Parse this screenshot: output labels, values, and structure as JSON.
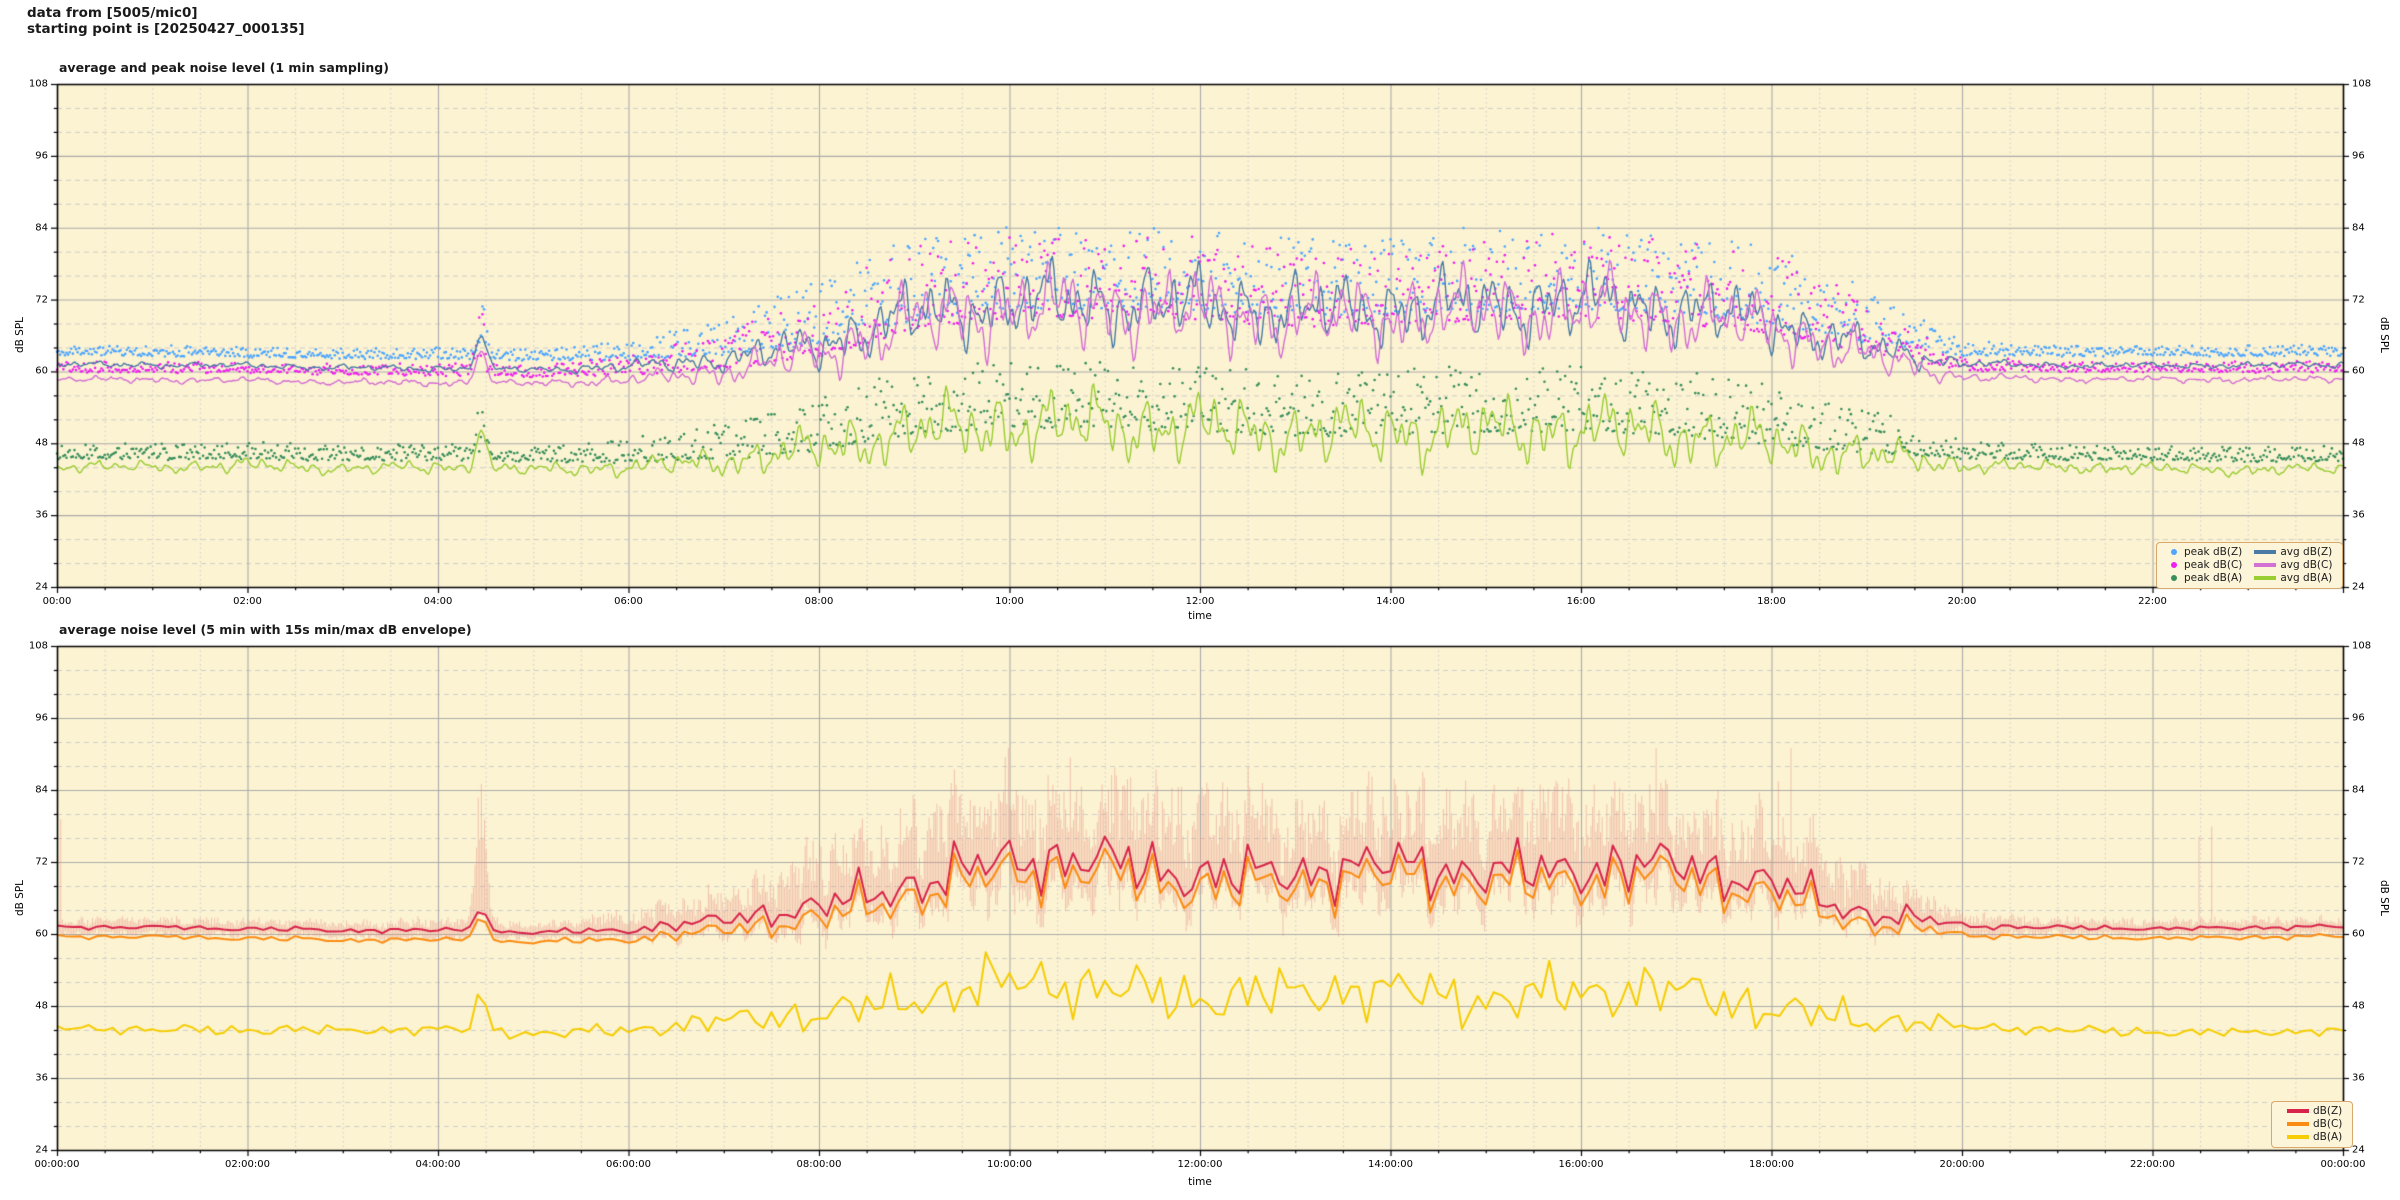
{
  "header": {
    "line1": "data from [5005/mic0]",
    "line2": "starting point is [20250427_000135]"
  },
  "colors": {
    "figure_bg": "#ffffff",
    "plot_bg": "#fcf3d2",
    "grid_major": "#ababab",
    "grid_minor": "#c9c9c9",
    "spine": "#000000",
    "peak_dbz": "#4da6ff",
    "peak_dbc": "#ee22ee",
    "peak_dba": "#378f5b",
    "avg_dbz": "#4a7ba6",
    "avg_dbc": "#d46fd4",
    "avg_dba": "#9acd32",
    "dbz2": "#d8244a",
    "dbc2": "#fb8c12",
    "dba2": "#f5cd02",
    "envelope": "rgba(232,148,138,0.5)",
    "legend_border": "#d9a86c",
    "legend_bg": "#fdf5d9"
  },
  "chart_data": [
    {
      "type": "line",
      "title": "average and peak noise level (1 min sampling)",
      "xlabel": "time",
      "ylabel_left": "dB SPL",
      "ylabel_right": "dB SPL",
      "ylim": [
        24,
        108
      ],
      "xlim_hours": [
        0,
        24
      ],
      "y_ticks": [
        24,
        36,
        48,
        60,
        72,
        84,
        96,
        108
      ],
      "y_minor_step": 4,
      "x_tick_hours": [
        0,
        2,
        4,
        6,
        8,
        10,
        12,
        14,
        16,
        18,
        20,
        22
      ],
      "x_tick_labels": [
        "00:00",
        "02:00",
        "04:00",
        "06:00",
        "08:00",
        "10:00",
        "12:00",
        "14:00",
        "16:00",
        "18:00",
        "20:00",
        "22:00"
      ],
      "x_minor_step_hours": 0.5,
      "grid": {
        "major": true,
        "minor": true
      },
      "legend_position": "lower right",
      "sampling": "1 min",
      "spike_event": {
        "hour": 4.45,
        "sigma_hours": 0.055
      },
      "anchor_hours": [
        0,
        1,
        2,
        3,
        4,
        5,
        6,
        7,
        8,
        9,
        10,
        11,
        12,
        13,
        14,
        15,
        16,
        17,
        18,
        19,
        20,
        21,
        22,
        23,
        24
      ],
      "series": [
        {
          "name": "peak dB(Z)",
          "kind": "scatter",
          "color": "#4da6ff",
          "seed": 11,
          "spike_amp": 11,
          "cap": 92.5,
          "hourly_center": [
            63.3,
            63.2,
            63.1,
            62.8,
            62.8,
            62.5,
            63.2,
            65,
            68.5,
            73.5,
            75.5,
            75.5,
            75,
            74,
            74.5,
            75,
            75.5,
            74.5,
            72.5,
            68,
            63.5,
            63.2,
            63.2,
            63.2,
            63.3
          ],
          "hourly_spread": [
            0.8,
            0.8,
            0.8,
            0.8,
            1.0,
            0.8,
            1.6,
            3,
            5.5,
            7,
            7,
            7,
            7,
            7,
            7,
            7,
            7,
            7,
            6.5,
            4.5,
            1.1,
            0.8,
            0.8,
            0.8,
            0.8
          ]
        },
        {
          "name": "peak dB(C)",
          "kind": "scatter",
          "color": "#ee22ee",
          "seed": 12,
          "spike_amp": 11,
          "cap": 91.5,
          "hourly_center": [
            60.6,
            60.5,
            60.4,
            60.1,
            60.1,
            59.8,
            60.6,
            62.6,
            66.5,
            72,
            74,
            74,
            73.5,
            72.5,
            73,
            73.5,
            74,
            73,
            71,
            66.5,
            60.9,
            60.6,
            60.6,
            60.5,
            60.6
          ],
          "hourly_spread": [
            0.8,
            0.8,
            0.8,
            0.8,
            1.0,
            0.8,
            1.6,
            3,
            5.5,
            7,
            7,
            7,
            7,
            7,
            7,
            7,
            7,
            7,
            6.5,
            4.5,
            1.1,
            0.8,
            0.8,
            0.8,
            0.8
          ]
        },
        {
          "name": "peak dB(A)",
          "kind": "scatter",
          "color": "#378f5b",
          "seed": 13,
          "spike_amp": 10,
          "cap": 72,
          "hourly_center": [
            46.4,
            46.2,
            46.5,
            46,
            46.2,
            45.8,
            46.3,
            47.5,
            50,
            53.5,
            54.5,
            54.5,
            54,
            53,
            53.5,
            53.5,
            54,
            53,
            51.5,
            49,
            46.5,
            46.2,
            46,
            45.8,
            46
          ],
          "hourly_spread": [
            1.2,
            1.2,
            1.4,
            1.2,
            1.4,
            1.2,
            2,
            3,
            4.5,
            5.5,
            5.5,
            5.5,
            5.5,
            5.5,
            5.5,
            5.5,
            5.5,
            5.5,
            5,
            3.8,
            1.5,
            1.2,
            1.2,
            1.2,
            1.2
          ]
        },
        {
          "name": "avg dB(Z)",
          "kind": "line",
          "color": "#4a7ba6",
          "seed": 1,
          "width": 1.4,
          "spike_amp": 5.5,
          "hourly_values": [
            61.2,
            61.1,
            61.0,
            60.6,
            60.5,
            60.3,
            60.8,
            62.0,
            64.5,
            69.5,
            71.5,
            71.5,
            71.0,
            70.0,
            70.5,
            71.0,
            71.5,
            70.5,
            68.5,
            64.0,
            61.3,
            61.0,
            61.0,
            61.0,
            61.2
          ],
          "hourly_wobble": [
            0.5,
            0.5,
            0.5,
            0.5,
            0.6,
            0.5,
            1.0,
            2.0,
            4.0,
            6.0,
            6.5,
            6.5,
            6.5,
            6.0,
            6.2,
            6.2,
            6.5,
            6.0,
            5.0,
            3.5,
            0.8,
            0.5,
            0.5,
            0.5,
            0.6
          ]
        },
        {
          "name": "avg dB(C)",
          "kind": "line",
          "color": "#d46fd4",
          "seed": 2,
          "width": 1.4,
          "spike_amp": 5.5,
          "hourly_values": [
            58.7,
            58.6,
            58.5,
            58.2,
            58.1,
            58.0,
            58.5,
            60.0,
            63.0,
            68.5,
            70.5,
            70.5,
            70.0,
            69.0,
            69.5,
            70.0,
            70.5,
            69.5,
            67.5,
            62.5,
            59.0,
            58.7,
            58.7,
            58.6,
            58.8
          ],
          "hourly_wobble": [
            0.5,
            0.5,
            0.5,
            0.5,
            0.6,
            0.5,
            1.0,
            2.2,
            4.3,
            6.5,
            7.0,
            7.0,
            7.0,
            6.5,
            6.7,
            6.7,
            7.0,
            6.5,
            5.4,
            3.8,
            0.8,
            0.5,
            0.5,
            0.5,
            0.6
          ]
        },
        {
          "name": "avg dB(A)",
          "kind": "line",
          "color": "#9acd32",
          "seed": 3,
          "width": 1.4,
          "spike_amp": 6.5,
          "hourly_values": [
            44.2,
            44.0,
            44.3,
            43.8,
            44.0,
            43.6,
            44.0,
            45.0,
            47.0,
            50.0,
            51.0,
            51.0,
            50.5,
            49.5,
            50.0,
            50.0,
            50.5,
            49.5,
            48.0,
            46.0,
            44.3,
            44.0,
            43.8,
            43.5,
            43.8
          ],
          "hourly_wobble": [
            1.0,
            1.0,
            1.3,
            1.0,
            1.2,
            1.0,
            1.5,
            2.5,
            4.0,
            5.5,
            6.0,
            6.0,
            6.0,
            5.5,
            5.7,
            5.7,
            6.0,
            5.5,
            4.8,
            3.5,
            1.3,
            1.0,
            1.0,
            1.0,
            1.0
          ]
        }
      ],
      "legend_entries": [
        {
          "label": "peak dB(Z)",
          "marker": "dot",
          "color": "#4da6ff"
        },
        {
          "label": "peak dB(C)",
          "marker": "dot",
          "color": "#ee22ee"
        },
        {
          "label": "peak dB(A)",
          "marker": "dot",
          "color": "#378f5b"
        },
        {
          "label": "avg dB(Z)",
          "marker": "line",
          "color": "#4a7ba6"
        },
        {
          "label": "avg dB(C)",
          "marker": "line",
          "color": "#d46fd4"
        },
        {
          "label": "avg dB(A)",
          "marker": "line",
          "color": "#9acd32"
        }
      ]
    },
    {
      "type": "line",
      "title": "average noise level (5 min with 15s min/max dB envelope)",
      "xlabel": "time",
      "ylabel_left": "dB SPL",
      "ylabel_right": "dB SPL",
      "ylim": [
        24,
        108
      ],
      "xlim_hours": [
        0,
        24
      ],
      "y_ticks": [
        24,
        36,
        48,
        60,
        72,
        84,
        96,
        108
      ],
      "y_minor_step": 4,
      "x_tick_hours": [
        0,
        2,
        4,
        6,
        8,
        10,
        12,
        14,
        16,
        18,
        20,
        22,
        24
      ],
      "x_tick_labels": [
        "00:00:00",
        "02:00:00",
        "04:00:00",
        "06:00:00",
        "08:00:00",
        "10:00:00",
        "12:00:00",
        "14:00:00",
        "16:00:00",
        "18:00:00",
        "20:00:00",
        "22:00:00",
        "00:00:00"
      ],
      "x_minor_step_hours": 0.5,
      "grid": {
        "major": true,
        "minor": true
      },
      "legend_position": "lower right",
      "sampling": "5 min",
      "spike_event": {
        "hour": 4.45,
        "sigma_hours": 0.055
      },
      "anchor_hours": [
        0,
        1,
        2,
        3,
        4,
        5,
        6,
        7,
        8,
        9,
        10,
        11,
        12,
        13,
        14,
        15,
        16,
        17,
        18,
        19,
        20,
        21,
        22,
        23,
        24
      ],
      "envelope": {
        "name": "15s min/max dB envelope",
        "color": "rgba(232,148,138,0.5)",
        "seed": 29,
        "spike_amp": 22,
        "cap": 91,
        "hourly_above": [
          1.8,
          1.8,
          1.8,
          1.8,
          2.2,
          1.8,
          3,
          6,
          10,
          13,
          14,
          14,
          14,
          13,
          13,
          13,
          14,
          13,
          11,
          7,
          2.5,
          1.8,
          1.8,
          1.8,
          1.8
        ],
        "hourly_below": [
          1.5,
          1.5,
          1.5,
          1.5,
          1.8,
          1.5,
          2,
          3,
          4.5,
          5.5,
          6,
          6,
          6,
          5.5,
          5.5,
          5.5,
          6,
          5.5,
          5,
          3.5,
          1.8,
          1.5,
          1.5,
          1.5,
          1.5
        ]
      },
      "series": [
        {
          "name": "dB(Z)",
          "kind": "line",
          "color": "#d8244a",
          "seed": 21,
          "width": 2,
          "spike_amp": 4.5,
          "hourly_values": [
            61.2,
            61.1,
            61.0,
            60.6,
            60.5,
            60.3,
            60.8,
            62.0,
            64.5,
            69.5,
            71.5,
            71.5,
            71.0,
            70.0,
            70.5,
            71.0,
            71.5,
            70.5,
            68.5,
            64.0,
            61.3,
            61.0,
            61.0,
            61.0,
            61.2
          ],
          "hourly_wobble": [
            0.45,
            0.45,
            0.45,
            0.45,
            0.55,
            0.45,
            0.9,
            1.8,
            3.5,
            5.2,
            5.6,
            5.6,
            5.6,
            5.2,
            5.4,
            5.4,
            5.6,
            5.2,
            4.4,
            3.0,
            0.7,
            0.45,
            0.45,
            0.45,
            0.55
          ]
        },
        {
          "name": "dB(C)",
          "kind": "line",
          "color": "#fb8c12",
          "seed": 21,
          "width": 2,
          "spike_amp": 5,
          "hourly_values": [
            59.6,
            59.5,
            59.4,
            59.0,
            58.9,
            58.7,
            59.2,
            60.3,
            62.5,
            67.5,
            69.5,
            69.5,
            69.0,
            68.0,
            68.5,
            69.0,
            69.5,
            68.5,
            66.5,
            62.3,
            59.7,
            59.4,
            59.4,
            59.4,
            59.6
          ],
          "hourly_wobble": [
            0.45,
            0.45,
            0.45,
            0.45,
            0.55,
            0.45,
            0.9,
            1.8,
            3.5,
            5.2,
            5.6,
            5.6,
            5.6,
            5.2,
            5.4,
            5.4,
            5.6,
            5.2,
            4.4,
            3.0,
            0.7,
            0.45,
            0.45,
            0.45,
            0.55
          ]
        },
        {
          "name": "dB(A)",
          "kind": "line",
          "color": "#f5cd02",
          "seed": 23,
          "width": 2,
          "spike_amp": 6.5,
          "hourly_values": [
            44.2,
            44.0,
            44.3,
            43.8,
            44.0,
            43.6,
            44.0,
            45.0,
            47.0,
            50.0,
            51.0,
            51.0,
            50.5,
            49.5,
            50.0,
            50.0,
            50.5,
            49.5,
            48.0,
            46.0,
            44.3,
            44.0,
            43.8,
            43.5,
            43.8
          ],
          "hourly_wobble": [
            0.9,
            0.9,
            1.2,
            0.9,
            1.1,
            0.9,
            1.4,
            2.3,
            3.6,
            5.0,
            5.4,
            5.4,
            5.4,
            5.0,
            5.1,
            5.1,
            5.4,
            5.0,
            4.3,
            3.2,
            1.2,
            0.9,
            0.9,
            0.9,
            0.9
          ]
        }
      ],
      "legend_entries": [
        {
          "label": "dB(Z)",
          "marker": "line",
          "color": "#d8244a"
        },
        {
          "label": "dB(C)",
          "marker": "line",
          "color": "#fb8c12"
        },
        {
          "label": "dB(A)",
          "marker": "line",
          "color": "#f5cd02"
        }
      ]
    }
  ]
}
